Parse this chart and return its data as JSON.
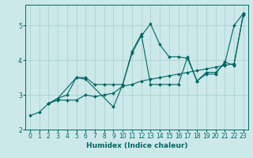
{
  "title": "",
  "xlabel": "Humidex (Indice chaleur)",
  "bg_color": "#cce8e8",
  "line_color": "#006666",
  "grid_color": "#aad4d4",
  "xlim": [
    -0.5,
    23.5
  ],
  "ylim": [
    2.0,
    5.6
  ],
  "xticks": [
    0,
    1,
    2,
    3,
    4,
    5,
    6,
    7,
    8,
    9,
    10,
    11,
    12,
    13,
    14,
    15,
    16,
    17,
    18,
    19,
    20,
    21,
    22,
    23
  ],
  "yticks": [
    2,
    3,
    4,
    5
  ],
  "series": [
    {
      "x": [
        0,
        1,
        2,
        3,
        4,
        5,
        6,
        7,
        8,
        9,
        10,
        11,
        12,
        13,
        14,
        15,
        16,
        17,
        18,
        19,
        20,
        21,
        22,
        23
      ],
      "y": [
        2.4,
        2.5,
        2.75,
        2.85,
        2.85,
        2.85,
        3.0,
        2.95,
        3.0,
        3.05,
        3.25,
        3.3,
        3.4,
        3.45,
        3.5,
        3.55,
        3.6,
        3.65,
        3.7,
        3.75,
        3.8,
        3.85,
        3.9,
        5.3
      ]
    },
    {
      "x": [
        2,
        3,
        4,
        5,
        6,
        7,
        8,
        9,
        10,
        11,
        12,
        13,
        14,
        15,
        16,
        17,
        18,
        19,
        20,
        21,
        22,
        23
      ],
      "y": [
        2.75,
        2.9,
        3.0,
        3.5,
        3.5,
        3.3,
        3.3,
        3.3,
        3.3,
        4.2,
        4.7,
        5.05,
        4.45,
        4.1,
        4.1,
        4.05,
        3.4,
        3.65,
        3.65,
        3.9,
        5.0,
        5.35
      ]
    },
    {
      "x": [
        2,
        3,
        5,
        6,
        9,
        10,
        11,
        12,
        13,
        14,
        15,
        16,
        17,
        18,
        19,
        20,
        21,
        22,
        23
      ],
      "y": [
        2.75,
        2.9,
        3.5,
        3.45,
        2.65,
        3.3,
        4.25,
        4.75,
        3.3,
        3.3,
        3.3,
        3.3,
        4.1,
        3.4,
        3.6,
        3.6,
        3.95,
        3.85,
        5.35
      ]
    }
  ]
}
